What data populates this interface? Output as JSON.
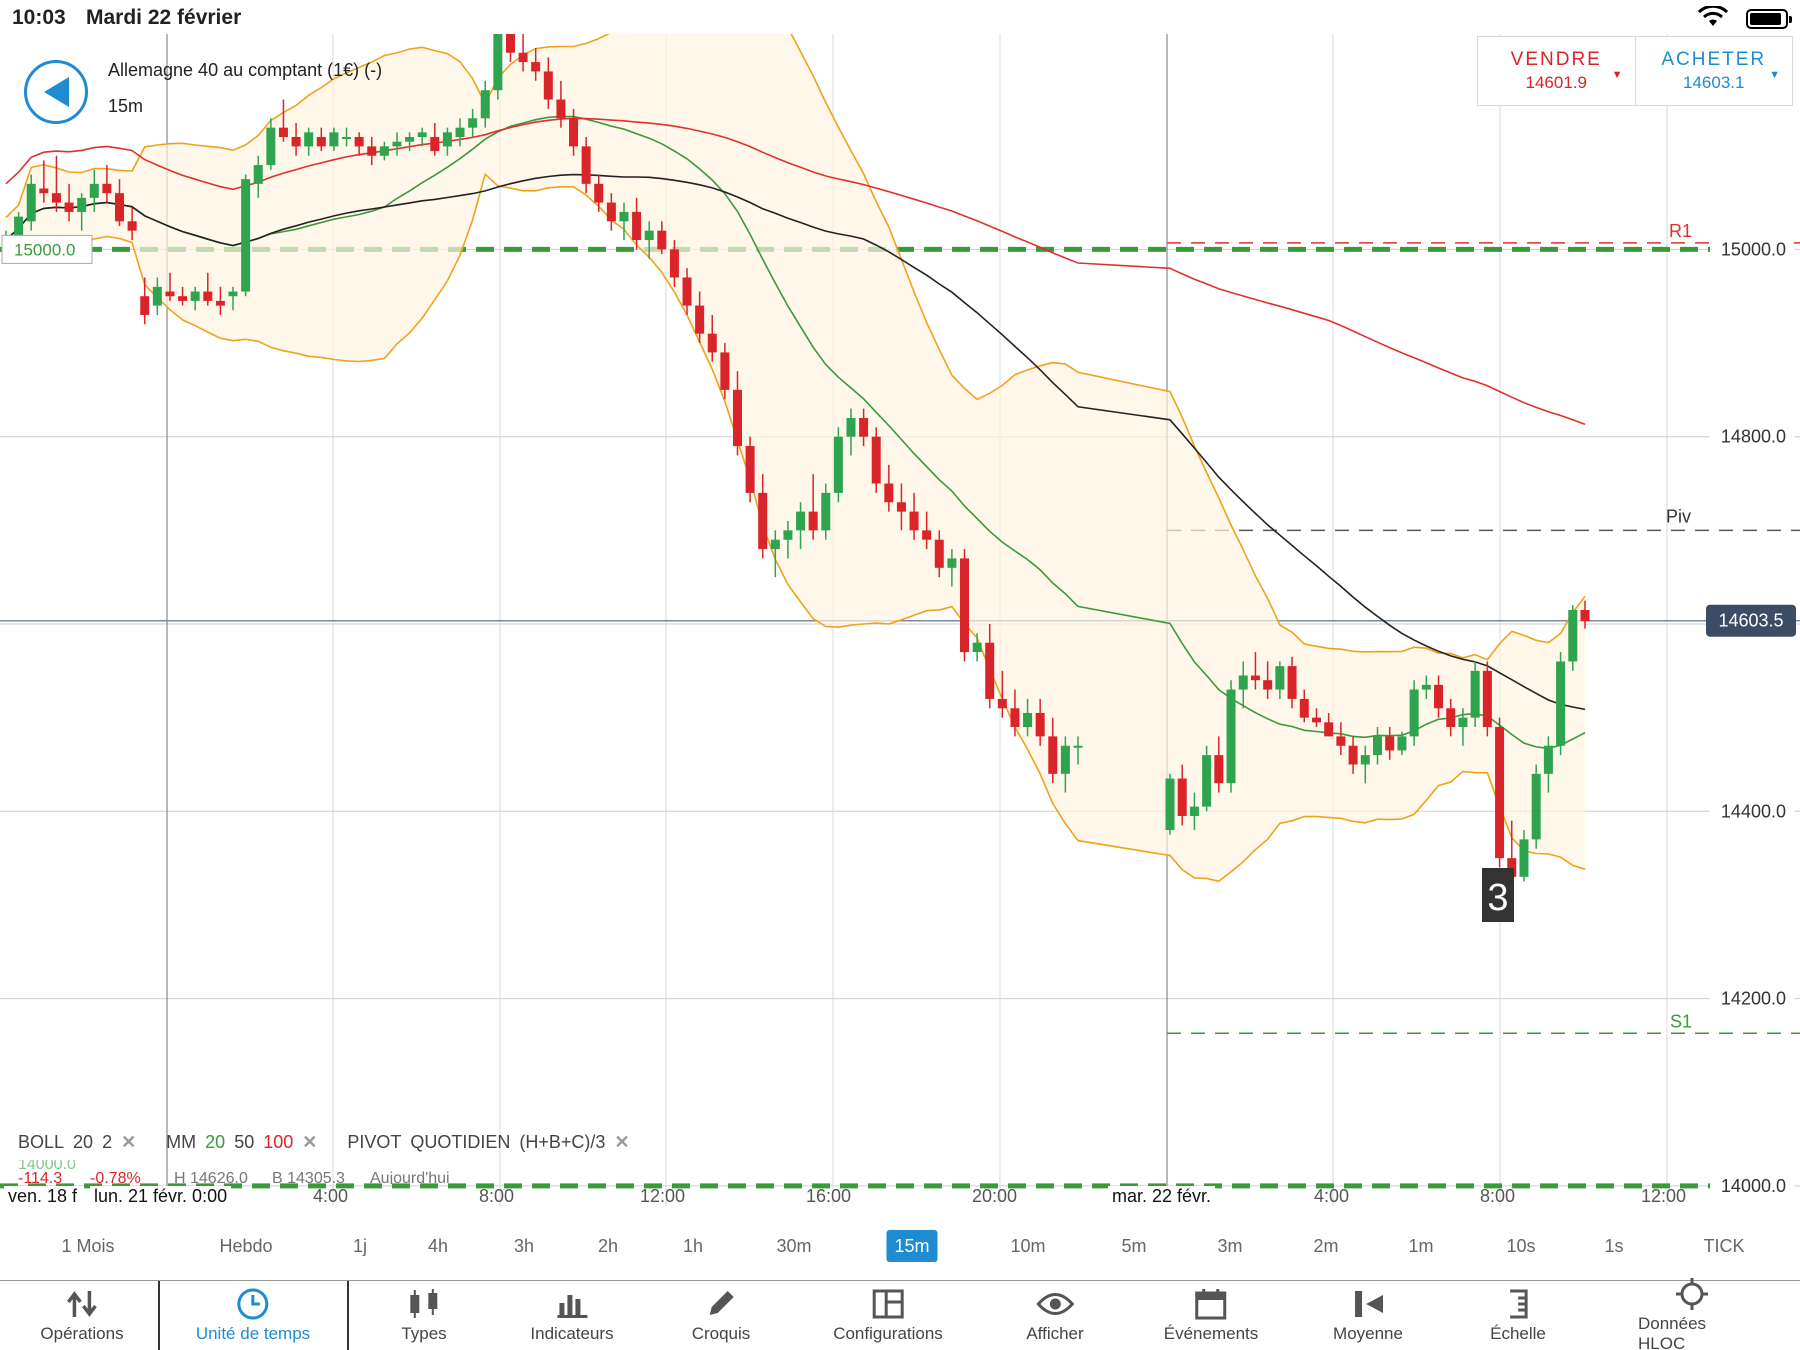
{
  "status_bar": {
    "time": "10:03",
    "date": "Mardi 22 février"
  },
  "instrument": {
    "name": "Allemagne 40 au comptant (1€) (-)",
    "timeframe": "15m"
  },
  "trade": {
    "sell_label": "VENDRE",
    "sell_price": "14601.9",
    "buy_label": "ACHETER",
    "buy_price": "14603.1"
  },
  "price_axis": {
    "ticks": [
      "15000.0",
      "14800.0",
      "14400.0",
      "14200.0",
      "14000.0"
    ],
    "current": "14603.5",
    "left_marker": "15000.0"
  },
  "pivots": {
    "r1": "R1",
    "piv": "Piv",
    "s1": "S1"
  },
  "alert_badge": "3",
  "legend": {
    "boll": {
      "name": "BOLL",
      "p1": "20",
      "p2": "2"
    },
    "mm": {
      "name": "MM",
      "p1": "20",
      "p2": "50",
      "p3": "100"
    },
    "pivot": {
      "name": "PIVOT",
      "type": "QUOTIDIEN",
      "formula": "(H+B+C)/3"
    },
    "stats": {
      "change": "-114.3",
      "pct": "-0.78%",
      "high": "H 14626.0",
      "low": "B 14305.3",
      "day": "Aujourd'hui",
      "ghost_price": "14000.0"
    }
  },
  "time_axis": {
    "left_label": "ven. 18 f",
    "start_label": "lun. 21 févr. 0:00",
    "ticks": [
      "4:00",
      "8:00",
      "12:00",
      "16:00",
      "20:00",
      "mar. 22 févr.",
      "4:00",
      "8:00",
      "12:00"
    ]
  },
  "timeframes": [
    "1 Mois",
    "Hebdo",
    "1j",
    "4h",
    "3h",
    "2h",
    "1h",
    "30m",
    "15m",
    "10m",
    "5m",
    "3m",
    "2m",
    "1m",
    "10s",
    "1s",
    "TICK"
  ],
  "timeframe_active": "15m",
  "toolbar": [
    "Opérations",
    "Unité de temps",
    "Types",
    "Indicateurs",
    "Croquis",
    "Configurations",
    "Afficher",
    "Événements",
    "Moyenne",
    "Échelle",
    "Données HLOC"
  ],
  "toolbar_active": "Unité de temps",
  "colors": {
    "accent": "#1f8bd0",
    "sell": "#d9242a",
    "up": "#2ea44f",
    "down": "#d9242a",
    "boll": "#f0a21a",
    "ma20": "#3a9a3a",
    "ma50": "#222222",
    "ma100": "#e03030"
  },
  "chart_data": {
    "type": "candlestick",
    "interval": "15m",
    "ylim": [
      13970,
      15230
    ],
    "y_ticks": [
      14000,
      14200,
      14400,
      14600,
      14800,
      15000
    ],
    "current_price": 14603.5,
    "pivot_levels": {
      "R1": 15007,
      "Piv": 14700,
      "S1": 14163
    },
    "x_labels": [
      "4:00",
      "8:00",
      "12:00",
      "16:00",
      "20:00",
      "mar. 22 févr.",
      "4:00",
      "8:00",
      "12:00"
    ],
    "ohlc_day1": [
      [
        15005,
        15020,
        14995,
        15010
      ],
      [
        15010,
        15040,
        15005,
        15035
      ],
      [
        15030,
        15080,
        15020,
        15070
      ],
      [
        15065,
        15095,
        15050,
        15060
      ],
      [
        15060,
        15100,
        15040,
        15050
      ],
      [
        15050,
        15070,
        15030,
        15040
      ],
      [
        15040,
        15060,
        15020,
        15055
      ],
      [
        15055,
        15085,
        15040,
        15070
      ],
      [
        15070,
        15090,
        15050,
        15060
      ],
      [
        15060,
        15075,
        15025,
        15030
      ],
      [
        15030,
        15045,
        15010,
        15020
      ],
      [
        14950,
        14970,
        14920,
        14930
      ],
      [
        14940,
        14970,
        14930,
        14960
      ],
      [
        14955,
        14975,
        14945,
        14950
      ],
      [
        14950,
        14960,
        14940,
        14945
      ],
      [
        14945,
        14960,
        14935,
        14955
      ],
      [
        14955,
        14975,
        14940,
        14945
      ],
      [
        14945,
        14960,
        14930,
        14940
      ],
      [
        14950,
        14960,
        14935,
        14955
      ],
      [
        14955,
        15080,
        14950,
        15075
      ],
      [
        15070,
        15100,
        15055,
        15090
      ],
      [
        15090,
        15140,
        15085,
        15130
      ],
      [
        15130,
        15160,
        15115,
        15120
      ],
      [
        15120,
        15135,
        15100,
        15110
      ],
      [
        15110,
        15130,
        15100,
        15125
      ],
      [
        15120,
        15130,
        15105,
        15110
      ],
      [
        15110,
        15130,
        15105,
        15125
      ],
      [
        15120,
        15130,
        15110,
        15120
      ],
      [
        15120,
        15125,
        15100,
        15110
      ],
      [
        15110,
        15120,
        15090,
        15100
      ],
      [
        15100,
        15115,
        15095,
        15110
      ],
      [
        15110,
        15125,
        15100,
        15115
      ],
      [
        15115,
        15125,
        15105,
        15120
      ],
      [
        15120,
        15130,
        15110,
        15125
      ],
      [
        15120,
        15135,
        15100,
        15105
      ],
      [
        15110,
        15130,
        15100,
        15125
      ],
      [
        15120,
        15140,
        15110,
        15130
      ],
      [
        15130,
        15150,
        15120,
        15140
      ],
      [
        15140,
        15180,
        15130,
        15170
      ],
      [
        15170,
        15230,
        15160,
        15230
      ],
      [
        15230,
        15240,
        15200,
        15210
      ],
      [
        15210,
        15230,
        15190,
        15200
      ],
      [
        15200,
        15215,
        15180,
        15190
      ],
      [
        15190,
        15205,
        15150,
        15160
      ],
      [
        15160,
        15180,
        15130,
        15140
      ],
      [
        15140,
        15150,
        15100,
        15110
      ],
      [
        15110,
        15120,
        15060,
        15070
      ],
      [
        15070,
        15080,
        15040,
        15050
      ],
      [
        15050,
        15060,
        15020,
        15030
      ],
      [
        15030,
        15050,
        15010,
        15040
      ],
      [
        15040,
        15055,
        15000,
        15010
      ],
      [
        15010,
        15030,
        14990,
        15020
      ],
      [
        15020,
        15030,
        14995,
        15000
      ],
      [
        15000,
        15010,
        14960,
        14970
      ],
      [
        14970,
        14980,
        14930,
        14940
      ],
      [
        14940,
        14955,
        14900,
        14910
      ],
      [
        14910,
        14930,
        14880,
        14890
      ],
      [
        14890,
        14900,
        14840,
        14850
      ],
      [
        14850,
        14870,
        14780,
        14790
      ],
      [
        14790,
        14800,
        14730,
        14740
      ],
      [
        14740,
        14760,
        14670,
        14680
      ],
      [
        14680,
        14700,
        14650,
        14690
      ],
      [
        14690,
        14710,
        14670,
        14700
      ],
      [
        14700,
        14730,
        14680,
        14720
      ],
      [
        14720,
        14760,
        14690,
        14700
      ],
      [
        14700,
        14750,
        14690,
        14740
      ],
      [
        14740,
        14810,
        14730,
        14800
      ],
      [
        14800,
        14830,
        14780,
        14820
      ],
      [
        14820,
        14830,
        14790,
        14800
      ],
      [
        14800,
        14810,
        14740,
        14750
      ],
      [
        14750,
        14770,
        14720,
        14730
      ],
      [
        14730,
        14750,
        14700,
        14720
      ],
      [
        14720,
        14740,
        14690,
        14700
      ],
      [
        14700,
        14720,
        14680,
        14690
      ],
      [
        14690,
        14700,
        14650,
        14660
      ],
      [
        14660,
        14680,
        14640,
        14670
      ],
      [
        14670,
        14680,
        14560,
        14570
      ],
      [
        14570,
        14590,
        14560,
        14580
      ],
      [
        14580,
        14600,
        14510,
        14520
      ],
      [
        14520,
        14550,
        14500,
        14510
      ],
      [
        14510,
        14530,
        14480,
        14490
      ],
      [
        14490,
        14520,
        14480,
        14505
      ],
      [
        14505,
        14520,
        14470,
        14480
      ],
      [
        14480,
        14500,
        14430,
        14440
      ],
      [
        14440,
        14480,
        14420,
        14470
      ],
      [
        14470,
        14480,
        14450,
        14470
      ]
    ],
    "ohlc_day2": [
      [
        14380,
        14440,
        14375,
        14435
      ],
      [
        14435,
        14450,
        14385,
        14395
      ],
      [
        14395,
        14420,
        14380,
        14405
      ],
      [
        14405,
        14470,
        14400,
        14460
      ],
      [
        14460,
        14480,
        14420,
        14430
      ],
      [
        14430,
        14540,
        14420,
        14530
      ],
      [
        14530,
        14560,
        14510,
        14545
      ],
      [
        14545,
        14570,
        14530,
        14540
      ],
      [
        14540,
        14560,
        14520,
        14530
      ],
      [
        14530,
        14560,
        14520,
        14555
      ],
      [
        14555,
        14565,
        14510,
        14520
      ],
      [
        14520,
        14530,
        14495,
        14500
      ],
      [
        14500,
        14510,
        14490,
        14495
      ],
      [
        14495,
        14505,
        14480,
        14480
      ],
      [
        14480,
        14495,
        14460,
        14470
      ],
      [
        14470,
        14480,
        14440,
        14450
      ],
      [
        14450,
        14470,
        14430,
        14460
      ],
      [
        14460,
        14490,
        14450,
        14480
      ],
      [
        14480,
        14490,
        14455,
        14465
      ],
      [
        14465,
        14485,
        14460,
        14480
      ],
      [
        14480,
        14540,
        14470,
        14530
      ],
      [
        14530,
        14545,
        14520,
        14535
      ],
      [
        14535,
        14545,
        14500,
        14510
      ],
      [
        14510,
        14520,
        14480,
        14490
      ],
      [
        14490,
        14510,
        14470,
        14500
      ],
      [
        14500,
        14560,
        14490,
        14550
      ],
      [
        14550,
        14560,
        14480,
        14490
      ],
      [
        14490,
        14500,
        14340,
        14350
      ],
      [
        14350,
        14390,
        14320,
        14330
      ],
      [
        14330,
        14380,
        14325,
        14370
      ],
      [
        14370,
        14450,
        14360,
        14440
      ],
      [
        14440,
        14480,
        14420,
        14470
      ],
      [
        14470,
        14570,
        14460,
        14560
      ],
      [
        14560,
        14620,
        14550,
        14615
      ],
      [
        14615,
        14625,
        14595,
        14603
      ]
    ]
  }
}
